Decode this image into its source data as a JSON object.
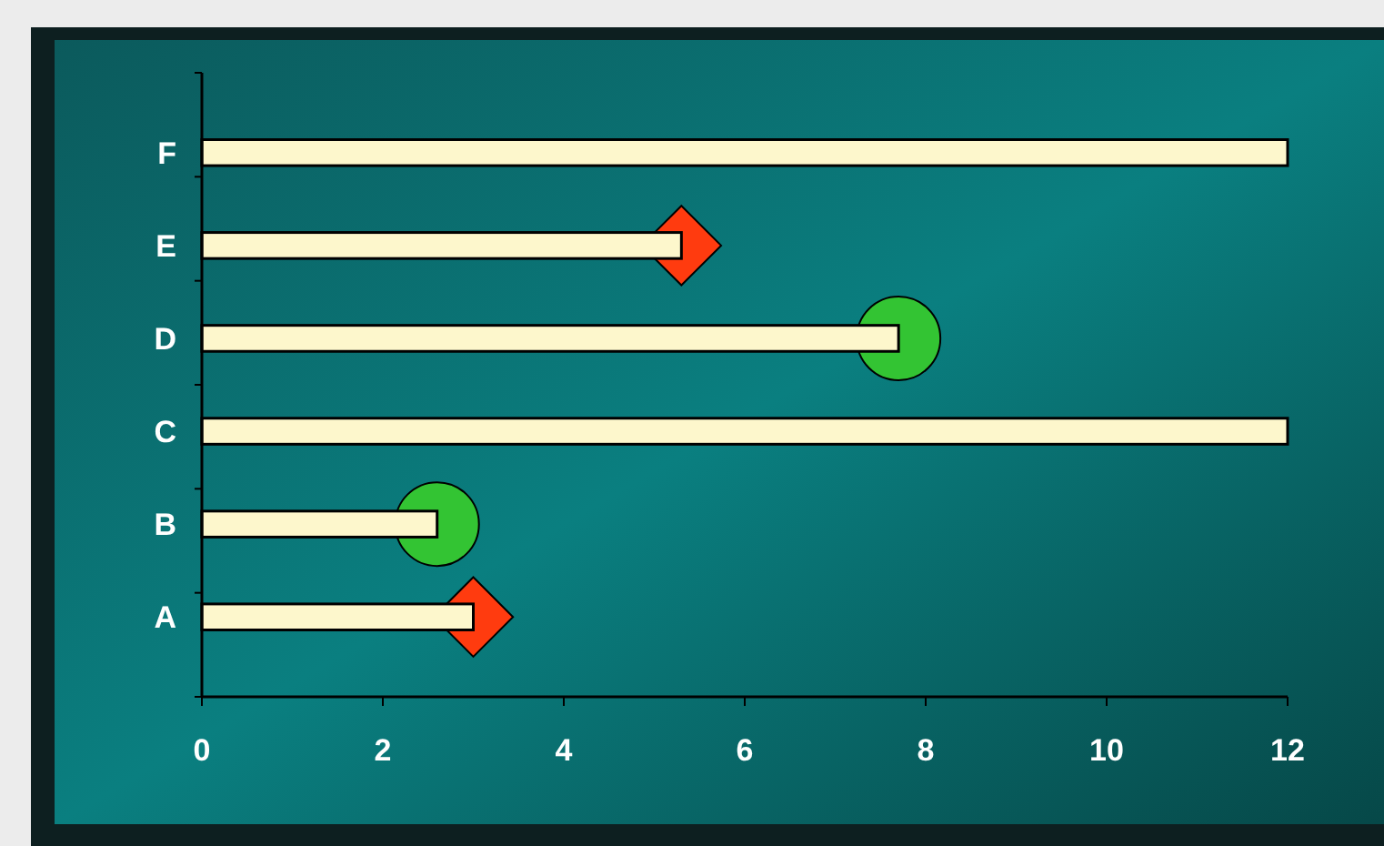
{
  "chart_data": {
    "type": "bar",
    "orientation": "horizontal",
    "categories": [
      "F",
      "E",
      "D",
      "C",
      "B",
      "A"
    ],
    "xlim": [
      0,
      12
    ],
    "xticks": [
      0,
      2,
      4,
      6,
      8,
      10,
      12
    ],
    "grid": false,
    "series": [
      {
        "color": "#fdf7cc",
        "values": [
          12,
          5.3,
          7.7,
          12,
          2.6,
          3
        ]
      },
      {
        "type": "scatter",
        "marker": "diamond",
        "color": "#ff3b0f",
        "x": [
          "E",
          "A"
        ],
        "values": [
          5.3,
          3
        ]
      },
      {
        "type": "scatter",
        "marker": "circle",
        "color": "#33c433",
        "x": [
          "D",
          "B"
        ],
        "values": [
          7.7,
          2.6
        ]
      }
    ]
  }
}
